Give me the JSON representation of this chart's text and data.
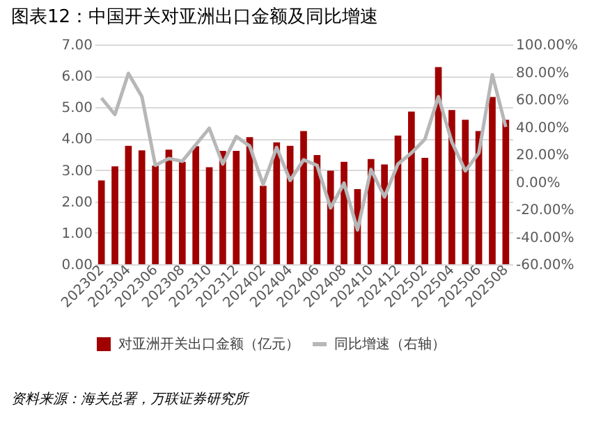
{
  "chart_data": {
    "type": "bar",
    "title": "图表12：中国开关对亚洲出口金额及同比增速",
    "categories": [
      "202302",
      null,
      "202304",
      null,
      "202306",
      null,
      "202308",
      null,
      "202310",
      null,
      "202312",
      null,
      "202402",
      null,
      "202404",
      null,
      "202406",
      null,
      "202408",
      null,
      "202410",
      null,
      "202412",
      null,
      "202502",
      null,
      "202504",
      null,
      "202506",
      null,
      "202508"
    ],
    "series": [
      {
        "name": "对亚洲开关出口金额（亿元）",
        "color": "#a00000",
        "values": [
          2.67,
          3.12,
          3.77,
          3.63,
          3.14,
          3.65,
          3.26,
          3.76,
          3.09,
          3.61,
          3.61,
          4.05,
          2.5,
          3.88,
          3.77,
          4.24,
          3.48,
          2.98,
          3.26,
          2.39,
          3.35,
          3.18,
          4.1,
          4.86,
          3.39,
          6.28,
          4.91,
          4.6,
          4.24,
          5.33,
          4.6
        ]
      },
      {
        "name": "同比增速（右轴）",
        "type": "line",
        "axis": "y2",
        "color": "#b7b7b7",
        "values": [
          61,
          49,
          79,
          62,
          12,
          17,
          15,
          27,
          39,
          13,
          33,
          26,
          -2,
          25,
          1,
          16,
          12,
          -19,
          -1,
          -35,
          9,
          -11,
          13,
          21,
          31,
          62,
          29,
          8,
          21,
          78,
          40
        ]
      }
    ],
    "ylim": [
      0,
      7
    ],
    "yticks": [
      {
        "value": 0,
        "label": "0.00"
      },
      {
        "value": 1,
        "label": "1.00"
      },
      {
        "value": 2,
        "label": "2.00"
      },
      {
        "value": 3,
        "label": "3.00"
      },
      {
        "value": 4,
        "label": "4.00"
      },
      {
        "value": 5,
        "label": "5.00"
      },
      {
        "value": 6,
        "label": "6.00"
      },
      {
        "value": 7,
        "label": "7.00"
      }
    ],
    "y2lim": [
      -60,
      100
    ],
    "y2ticks": [
      {
        "value": -60,
        "label": "-60.00%"
      },
      {
        "value": -40,
        "label": "-40.00%"
      },
      {
        "value": -20,
        "label": "-20.00%"
      },
      {
        "value": 0,
        "label": "0.00%"
      },
      {
        "value": 20,
        "label": "20.00%"
      },
      {
        "value": 40,
        "label": "40.00%"
      },
      {
        "value": 60,
        "label": "60.00%"
      },
      {
        "value": 80,
        "label": "80.00%"
      },
      {
        "value": 100,
        "label": "100.00%"
      }
    ],
    "grid": "y",
    "legend": "bottom",
    "line_style": "solid",
    "annotations": [
      "资料来源：海关总署，万联证券研究所"
    ]
  }
}
